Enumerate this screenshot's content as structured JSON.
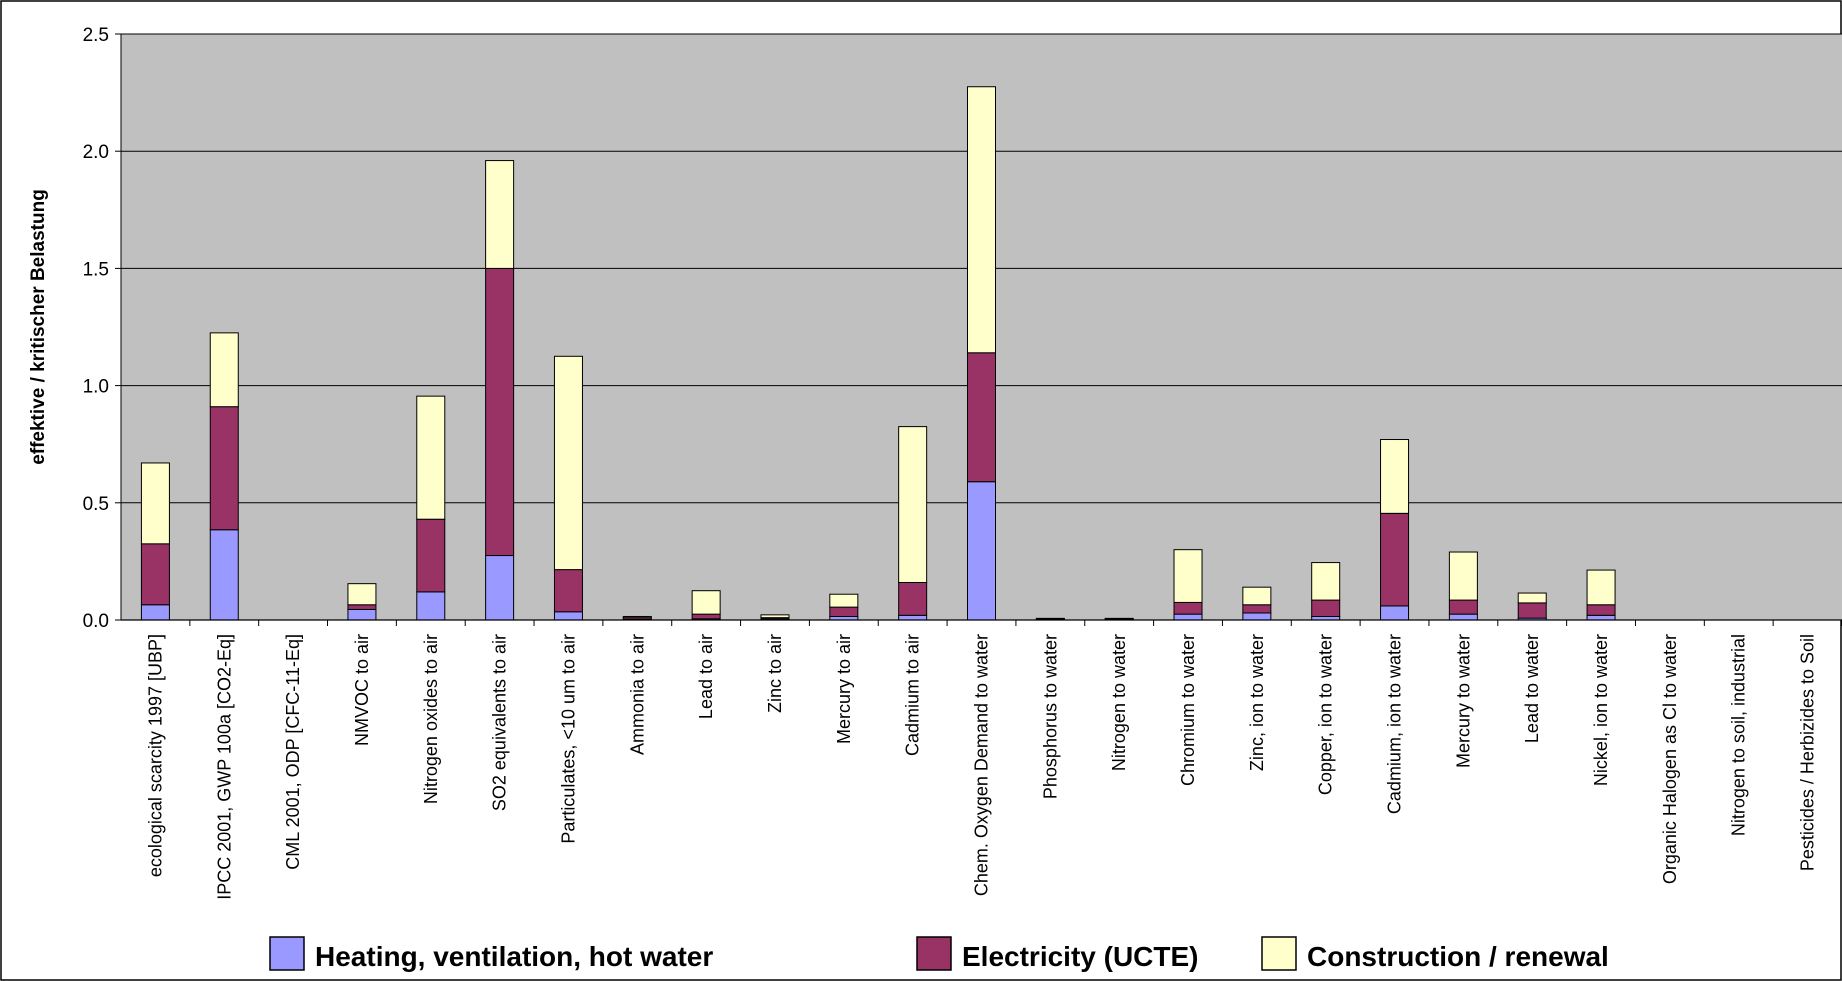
{
  "chart_data": {
    "type": "bar",
    "stacked": true,
    "title": "",
    "xlabel": "",
    "ylabel": "effektive / kritischer Belastung",
    "ylim": [
      0,
      2.5
    ],
    "yticks": [
      "0.0",
      "0.5",
      "1.0",
      "1.5",
      "2.0",
      "2.5"
    ],
    "ytick_values": [
      0,
      0.5,
      1.0,
      1.5,
      2.0,
      2.5
    ],
    "grid": true,
    "legend_position": "bottom",
    "categories": [
      "ecological scarcity 1997 [UBP]",
      "IPCC 2001, GWP 100a [CO2-Eq]",
      "CML 2001, ODP [CFC-11-Eq]",
      "NMVOC to air",
      "Nitrogen oxides to air",
      "SO2 equivalents to air",
      "Particulates, <10 um to air",
      "Ammonia to air",
      "Lead to air",
      "Zinc to air",
      "Mercury to air",
      "Cadmium to air",
      "Chem. Oxygen Demand to water",
      "Phosphorus to water",
      "Nitrogen to water",
      "Chromium to water",
      "Zinc, ion to water",
      "Copper, ion to water",
      "Cadmium, ion to water",
      "Mercury to water",
      "Lead to water",
      "Nickel, ion to water",
      "Organic Halogen as Cl to water",
      "Nitrogen to soil, industrial",
      "Pesticides / Herbizides to Soil"
    ],
    "series": [
      {
        "name": "Heating, ventilation, hot water",
        "color": "#9999ff",
        "values": [
          0.065,
          0.385,
          0.0,
          0.045,
          0.12,
          0.275,
          0.035,
          0.003,
          0.005,
          0.005,
          0.015,
          0.02,
          0.59,
          0.002,
          0.002,
          0.025,
          0.03,
          0.015,
          0.06,
          0.025,
          0.008,
          0.02,
          0.0,
          0.0,
          0.0
        ]
      },
      {
        "name": "Electricity (UCTE)",
        "color": "#993366",
        "values": [
          0.26,
          0.525,
          0.0,
          0.02,
          0.31,
          1.225,
          0.18,
          0.007,
          0.02,
          0.005,
          0.04,
          0.14,
          0.55,
          0.003,
          0.003,
          0.05,
          0.035,
          0.07,
          0.395,
          0.06,
          0.065,
          0.045,
          0.0,
          0.0,
          0.0
        ]
      },
      {
        "name": "Construction / renewal",
        "color": "#ffffcc",
        "values": [
          0.345,
          0.315,
          0.0,
          0.09,
          0.525,
          0.46,
          0.91,
          0.005,
          0.1,
          0.012,
          0.055,
          0.665,
          1.135,
          0.002,
          0.002,
          0.225,
          0.075,
          0.16,
          0.315,
          0.205,
          0.042,
          0.148,
          0.0,
          0.0,
          0.0
        ]
      }
    ]
  },
  "colors": {
    "plot_background": "#c0c0c0",
    "gridline": "#000000",
    "border": "#000000"
  }
}
